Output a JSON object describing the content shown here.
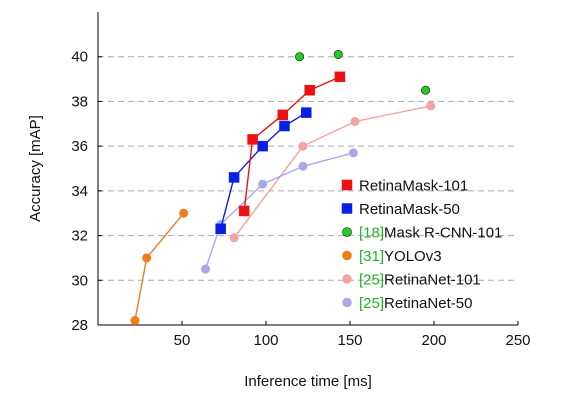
{
  "chart_data": {
    "type": "line",
    "xlabel": "Inference time [ms]",
    "ylabel": "Accuracy [mAP]",
    "xlim": [
      0,
      250
    ],
    "ylim": [
      28,
      42
    ],
    "xticks": [
      50,
      100,
      150,
      200,
      250
    ],
    "yticks": [
      28,
      30,
      32,
      34,
      36,
      38,
      40
    ],
    "grid": "horizontal dashed",
    "legend_position": "bottom-right",
    "series": [
      {
        "name": "RetinaMask-101",
        "cite": "",
        "color": "#ee1111",
        "marker": "square",
        "connected": true,
        "points": [
          [
            87,
            33.1
          ],
          [
            92,
            36.3
          ],
          [
            110,
            37.4
          ],
          [
            126,
            38.5
          ],
          [
            144,
            39.1
          ]
        ]
      },
      {
        "name": "RetinaMask-50",
        "cite": "",
        "color": "#0a1ee6",
        "marker": "square",
        "connected": true,
        "points": [
          [
            73,
            32.3
          ],
          [
            81,
            34.6
          ],
          [
            98,
            36.0
          ],
          [
            111,
            36.9
          ],
          [
            124,
            37.5
          ]
        ]
      },
      {
        "name": "Mask R-CNN-101",
        "cite": "[18]",
        "color": "#22cc22",
        "marker": "circle",
        "connected": false,
        "points": [
          [
            120,
            40.0
          ],
          [
            143,
            40.1
          ],
          [
            195,
            38.5
          ]
        ]
      },
      {
        "name": "YOLOv3",
        "cite": "[31]",
        "color": "#f07c1a",
        "marker": "circle",
        "connected": true,
        "points": [
          [
            22,
            28.2
          ],
          [
            29,
            31.0
          ],
          [
            51,
            33.0
          ]
        ]
      },
      {
        "name": "RetinaNet-101",
        "cite": "[25]",
        "color": "#f4a3a3",
        "marker": "circle",
        "connected": true,
        "points": [
          [
            81,
            31.9
          ],
          [
            122,
            36.0
          ],
          [
            153,
            37.1
          ],
          [
            198,
            37.8
          ]
        ]
      },
      {
        "name": "RetinaNet-50",
        "cite": "[25]",
        "color": "#a9a9ea",
        "marker": "circle",
        "connected": true,
        "points": [
          [
            64,
            30.5
          ],
          [
            73,
            32.5
          ],
          [
            98,
            34.3
          ],
          [
            122,
            35.1
          ],
          [
            152,
            35.7
          ]
        ]
      }
    ]
  }
}
